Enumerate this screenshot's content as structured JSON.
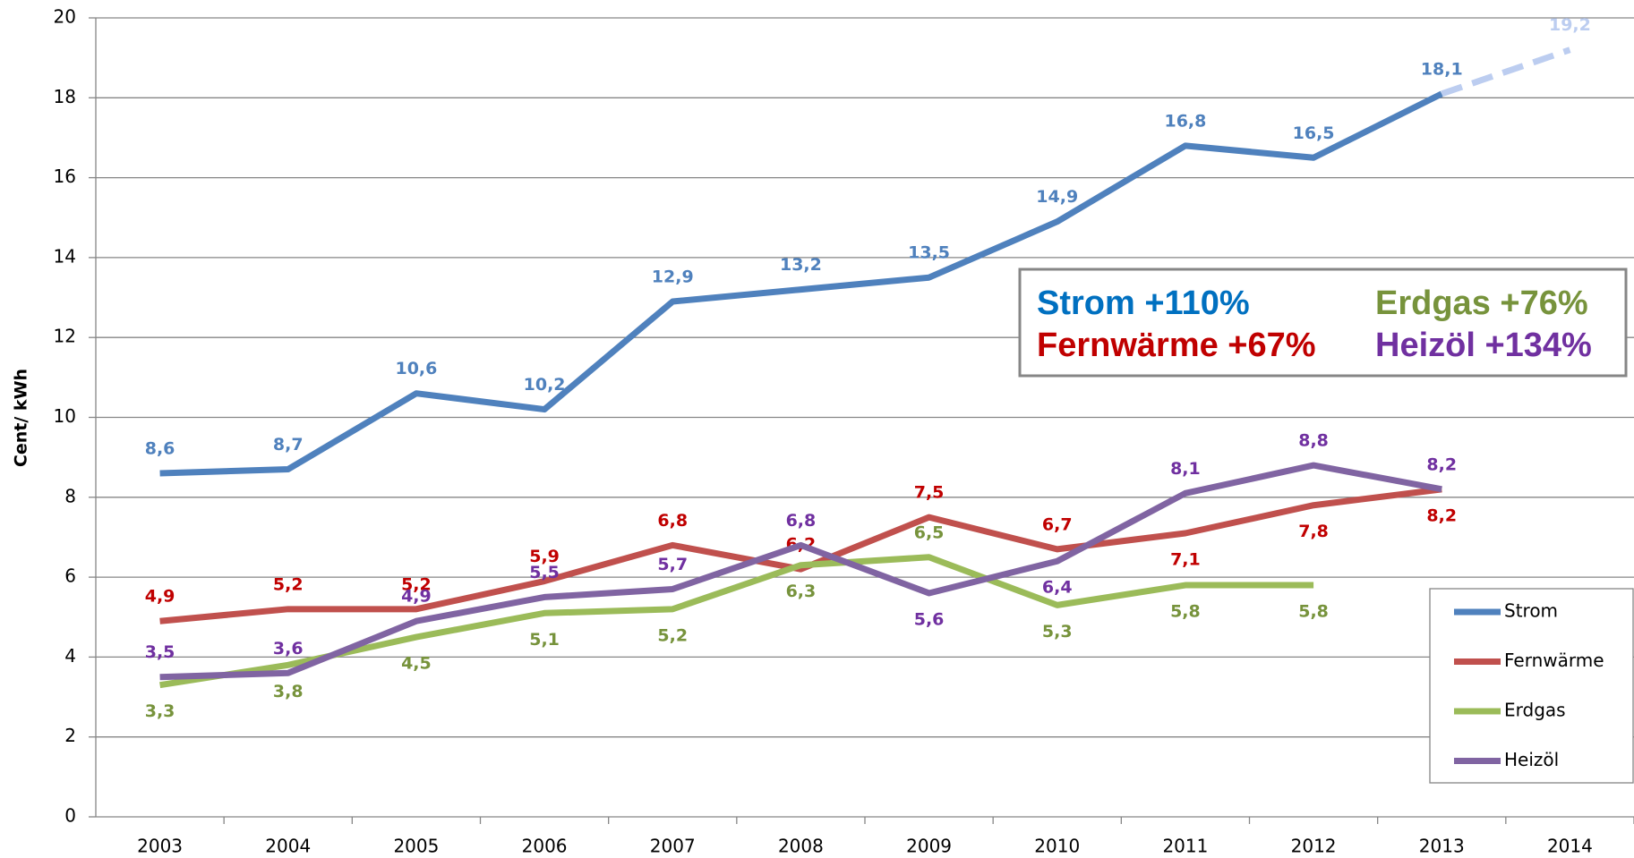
{
  "chart_data": {
    "type": "line",
    "y_label": "Cent/ kWh",
    "categories": [
      "2003",
      "2004",
      "2005",
      "2006",
      "2007",
      "2008",
      "2009",
      "2010",
      "2011",
      "2012",
      "2013",
      "2014"
    ],
    "series": [
      {
        "name": "Strom",
        "color": "#4f81bd",
        "label_color": "#4f81bd",
        "values": [
          8.6,
          8.7,
          10.6,
          10.2,
          12.9,
          13.2,
          13.5,
          14.9,
          16.8,
          16.5,
          18.1,
          19.2
        ],
        "value_labels": [
          "8,6",
          "8,7",
          "10,6",
          "10,2",
          "12,9",
          "13,2",
          "13,5",
          "14,9",
          "16,8",
          "16,5",
          "18,1",
          "19,2"
        ],
        "last_segment_style": "dashed",
        "last_segment_color": "#bccdf0"
      },
      {
        "name": "Fernwärme",
        "color": "#c0504d",
        "label_color": "#c00000",
        "values": [
          4.9,
          5.2,
          5.2,
          5.9,
          6.8,
          6.2,
          7.5,
          6.7,
          7.1,
          7.8,
          8.2,
          null
        ],
        "value_labels": [
          "4,9",
          "5,2",
          "5,2",
          "5,9",
          "6,8",
          "6,2",
          "7,5",
          "6,7",
          "7,1",
          "7,8",
          "8,2",
          null
        ]
      },
      {
        "name": "Erdgas",
        "color": "#9bbb59",
        "label_color": "#77933c",
        "values": [
          3.3,
          3.8,
          4.5,
          5.1,
          5.2,
          6.3,
          6.5,
          5.3,
          5.8,
          5.8,
          null,
          null
        ],
        "value_labels": [
          "3,3",
          "3,8",
          "4,5",
          "5,1",
          "5,2",
          "6,3",
          "6,5",
          "5,3",
          "5,8",
          "5,8",
          null,
          null
        ]
      },
      {
        "name": "Heizöl",
        "color": "#8064a2",
        "label_color": "#7030a0",
        "values": [
          3.5,
          3.6,
          4.9,
          5.5,
          5.7,
          6.8,
          5.6,
          6.4,
          8.1,
          8.8,
          8.2,
          null
        ],
        "value_labels": [
          "3,5",
          "3,6",
          "4,9",
          "5,5",
          "5,7",
          "6,8",
          "5,6",
          "6,4",
          "8,1",
          "8,8",
          "8,2",
          null
        ]
      }
    ],
    "annotations": [
      {
        "text": "Strom +110%",
        "color": "#0070c0"
      },
      {
        "text": "Fernwärme +67%",
        "color": "#c00000"
      },
      {
        "text": "Erdgas +76%",
        "color": "#77933c"
      },
      {
        "text": "Heizöl +134%",
        "color": "#7030a0"
      }
    ],
    "ylim": [
      0,
      20
    ],
    "yticks": [
      0,
      2,
      4,
      6,
      8,
      10,
      12,
      14,
      16,
      18,
      20
    ],
    "grid": true,
    "legend": "right"
  }
}
